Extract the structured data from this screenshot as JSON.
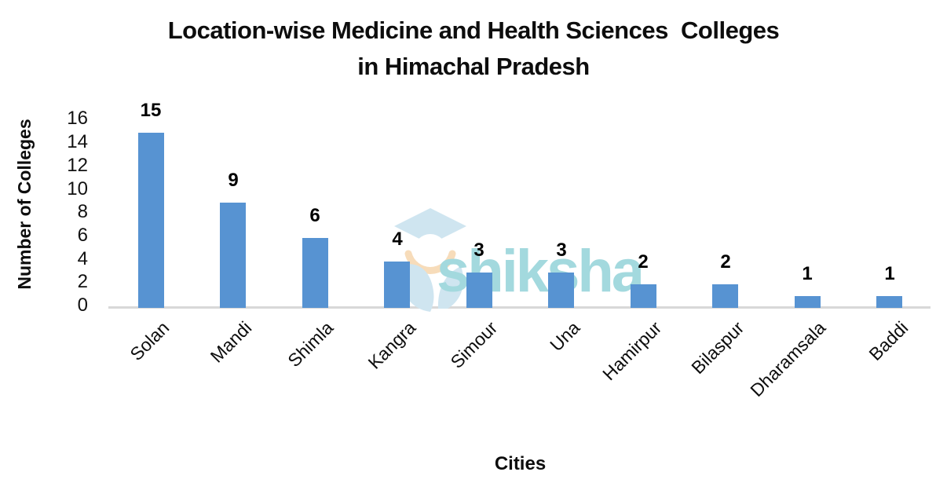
{
  "chart_data": {
    "type": "bar",
    "title": "Location-wise Medicine and Health Sciences  Colleges in Himachal Pradesh",
    "title_line1": "Location-wise Medicine and Health Sciences  Colleges",
    "title_line2": "in Himachal Pradesh",
    "xlabel": "Cities",
    "ylabel": "Number of Colleges",
    "categories": [
      "Solan",
      "Mandi",
      "Shimla",
      "Kangra",
      "Simour",
      "Una",
      "Hamirpur",
      "Bilaspur",
      "Dharamsala",
      "Baddi"
    ],
    "values": [
      15,
      9,
      6,
      4,
      3,
      3,
      2,
      2,
      1,
      1
    ],
    "ylim": [
      0,
      16
    ],
    "yticks": [
      0,
      2,
      4,
      6,
      8,
      10,
      12,
      14,
      16
    ],
    "grid": false,
    "legend": false,
    "data_labels": true,
    "bar_color": "#5793D2",
    "axis_line_color": "#D8D8D8",
    "label_color": "#000000"
  },
  "watermark": {
    "text": "shiksha",
    "text_color": "#a3d9de",
    "cap_color": "#cfe5f0",
    "arc_color": "#f7dcba",
    "face_color": "#ffffff"
  }
}
